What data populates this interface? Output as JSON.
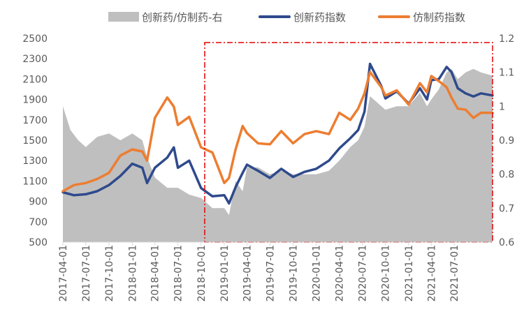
{
  "chart_data": {
    "type": "line",
    "legend": [
      {
        "name": "创新药/仿制药-右",
        "color": "#BFBFBF",
        "kind": "area"
      },
      {
        "name": "创新药指数",
        "color": "#2F4A8C",
        "kind": "line"
      },
      {
        "name": "仿制药指数",
        "color": "#ED7D31",
        "kind": "line"
      }
    ],
    "x_tick_labels": [
      "2017-04-01",
      "2017-07-01",
      "2017-10-01",
      "2018-01-01",
      "2018-04-01",
      "2018-07-01",
      "2018-10-01",
      "2019-01-01",
      "2019-04-01",
      "2019-07-01",
      "2019-10-01",
      "2020-01-01",
      "2020-04-01",
      "2020-07-01",
      "2020-10-01",
      "2021-01-01",
      "2021-04-01",
      "2021-07-01"
    ],
    "y_left": {
      "ticks": [
        "2500",
        "2300",
        "2100",
        "1900",
        "1700",
        "1500",
        "1300",
        "1100",
        "900",
        "700",
        "500"
      ],
      "range": [
        500,
        2500
      ]
    },
    "y_right": {
      "ticks": [
        "1.2",
        "1.1",
        "1",
        "0.9",
        "0.8",
        "0.7",
        "0.6"
      ],
      "range": [
        0.6,
        1.2
      ]
    },
    "x_range": [
      "2017-04-01",
      "2021-11-30"
    ],
    "grid": false,
    "legend_position": "top",
    "series": [
      {
        "name": "创新药指数",
        "axis": "left",
        "color": "#2F4A8C",
        "x": [
          "2017-04-01",
          "2017-05-15",
          "2017-07-01",
          "2017-08-15",
          "2017-10-01",
          "2017-11-15",
          "2018-01-01",
          "2018-02-10",
          "2018-03-01",
          "2018-04-01",
          "2018-05-20",
          "2018-06-15",
          "2018-07-01",
          "2018-08-15",
          "2018-10-01",
          "2018-11-15",
          "2019-01-01",
          "2019-01-20",
          "2019-02-15",
          "2019-03-15",
          "2019-04-01",
          "2019-05-15",
          "2019-07-01",
          "2019-08-15",
          "2019-10-01",
          "2019-11-15",
          "2020-01-01",
          "2020-02-20",
          "2020-04-01",
          "2020-05-15",
          "2020-06-15",
          "2020-07-10",
          "2020-08-01",
          "2020-09-15",
          "2020-10-01",
          "2020-11-15",
          "2021-01-01",
          "2021-02-15",
          "2021-03-15",
          "2021-04-01",
          "2021-05-01",
          "2021-06-01",
          "2021-06-20",
          "2021-07-15",
          "2021-08-15",
          "2021-09-15",
          "2021-10-15",
          "2021-11-30"
        ],
        "values": [
          990,
          960,
          970,
          1000,
          1060,
          1150,
          1270,
          1230,
          1080,
          1230,
          1330,
          1430,
          1230,
          1300,
          1030,
          950,
          960,
          880,
          1040,
          1180,
          1260,
          1200,
          1130,
          1220,
          1140,
          1190,
          1220,
          1300,
          1420,
          1520,
          1600,
          1780,
          2250,
          2030,
          1910,
          1980,
          1860,
          2010,
          1900,
          2090,
          2100,
          2220,
          2170,
          2010,
          1960,
          1930,
          1960,
          1940
        ]
      },
      {
        "name": "仿制药指数",
        "axis": "left",
        "color": "#ED7D31",
        "x": [
          "2017-04-01",
          "2017-05-15",
          "2017-07-01",
          "2017-08-15",
          "2017-10-01",
          "2017-11-15",
          "2018-01-01",
          "2018-02-10",
          "2018-03-01",
          "2018-04-01",
          "2018-05-20",
          "2018-06-15",
          "2018-07-01",
          "2018-08-15",
          "2018-10-01",
          "2018-11-15",
          "2019-01-01",
          "2019-01-20",
          "2019-02-15",
          "2019-03-15",
          "2019-04-01",
          "2019-05-15",
          "2019-07-01",
          "2019-08-15",
          "2019-10-01",
          "2019-11-15",
          "2020-01-01",
          "2020-02-20",
          "2020-04-01",
          "2020-05-15",
          "2020-06-15",
          "2020-07-10",
          "2020-08-01",
          "2020-09-15",
          "2020-10-01",
          "2020-11-15",
          "2021-01-01",
          "2021-02-15",
          "2021-03-15",
          "2021-04-01",
          "2021-05-01",
          "2021-06-01",
          "2021-06-20",
          "2021-07-15",
          "2021-08-15",
          "2021-09-15",
          "2021-10-15",
          "2021-11-30"
        ],
        "values": [
          1000,
          1060,
          1080,
          1120,
          1180,
          1350,
          1410,
          1390,
          1300,
          1720,
          1920,
          1830,
          1650,
          1730,
          1430,
          1380,
          1080,
          1130,
          1410,
          1640,
          1570,
          1470,
          1460,
          1590,
          1470,
          1560,
          1590,
          1560,
          1770,
          1700,
          1810,
          1960,
          2170,
          2020,
          1940,
          1990,
          1850,
          2060,
          1970,
          2130,
          2080,
          2020,
          1920,
          1810,
          1800,
          1720,
          1770,
          1770
        ]
      },
      {
        "name": "创新药/仿制药-右",
        "axis": "right",
        "color": "#BFBFBF",
        "x": [
          "2017-04-01",
          "2017-05-01",
          "2017-06-01",
          "2017-07-01",
          "2017-08-15",
          "2017-10-01",
          "2017-11-15",
          "2018-01-01",
          "2018-02-10",
          "2018-03-01",
          "2018-04-01",
          "2018-05-20",
          "2018-06-15",
          "2018-07-01",
          "2018-08-15",
          "2018-10-01",
          "2018-11-15",
          "2019-01-01",
          "2019-01-20",
          "2019-02-15",
          "2019-03-15",
          "2019-04-01",
          "2019-05-15",
          "2019-07-01",
          "2019-08-15",
          "2019-10-01",
          "2019-11-15",
          "2020-01-01",
          "2020-02-20",
          "2020-04-01",
          "2020-05-15",
          "2020-06-15",
          "2020-07-10",
          "2020-08-01",
          "2020-09-15",
          "2020-10-01",
          "2020-11-15",
          "2021-01-01",
          "2021-02-15",
          "2021-03-15",
          "2021-04-01",
          "2021-05-01",
          "2021-06-01",
          "2021-06-20",
          "2021-07-15",
          "2021-08-15",
          "2021-09-15",
          "2021-10-15",
          "2021-11-30"
        ],
        "values": [
          1.0,
          0.93,
          0.9,
          0.88,
          0.91,
          0.92,
          0.9,
          0.92,
          0.9,
          0.85,
          0.79,
          0.76,
          0.76,
          0.76,
          0.74,
          0.73,
          0.7,
          0.7,
          0.68,
          0.78,
          0.75,
          0.82,
          0.82,
          0.8,
          0.81,
          0.8,
          0.8,
          0.8,
          0.81,
          0.84,
          0.88,
          0.9,
          0.94,
          1.03,
          1.0,
          0.99,
          1.0,
          1.0,
          1.04,
          1.0,
          1.02,
          1.05,
          1.1,
          1.11,
          1.08,
          1.1,
          1.11,
          1.1,
          1.09
        ]
      }
    ]
  }
}
